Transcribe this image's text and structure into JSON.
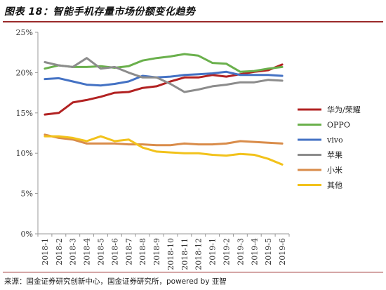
{
  "header": {
    "title": "图表 18：智能手机存量市场份额变化趋势"
  },
  "footer": {
    "source": "来源：国金证券研究创新中心，国金证券研究所，powered by 亚智"
  },
  "chart_data": {
    "type": "line",
    "title": "",
    "xlabel": "",
    "ylabel": "",
    "ylim": [
      0,
      25
    ],
    "yticks": [
      "0%",
      "5%",
      "10%",
      "15%",
      "20%",
      "25%"
    ],
    "grid": false,
    "legend_position": "right",
    "x": [
      "2018-1",
      "2018-2",
      "2018-3",
      "2018-4",
      "2018-5",
      "2018-6",
      "2018-7",
      "2018-8",
      "2018-9",
      "2018-10",
      "2018-11",
      "2018-12",
      "2019-1",
      "2019-2",
      "2019-3",
      "2019-4",
      "2019-5",
      "2019-6"
    ],
    "series": [
      {
        "name": "华为/荣耀",
        "color": "#b22222",
        "values": [
          14.8,
          15.0,
          16.3,
          16.6,
          17.0,
          17.5,
          17.6,
          18.1,
          18.3,
          18.9,
          19.4,
          19.4,
          19.7,
          19.5,
          19.8,
          20.1,
          20.3,
          21.0
        ]
      },
      {
        "name": "OPPO",
        "color": "#6ab04c",
        "values": [
          20.5,
          20.9,
          20.7,
          20.7,
          20.8,
          20.6,
          20.8,
          21.5,
          21.8,
          22.0,
          22.3,
          22.1,
          21.2,
          21.1,
          20.1,
          20.2,
          20.5,
          20.7
        ]
      },
      {
        "name": "vivo",
        "color": "#4472c4",
        "values": [
          19.2,
          19.3,
          18.9,
          18.5,
          18.4,
          18.6,
          18.9,
          19.6,
          19.4,
          19.5,
          19.7,
          19.8,
          19.9,
          20.1,
          19.7,
          19.7,
          19.7,
          19.6
        ]
      },
      {
        "name": "苹果",
        "color": "#8c8c8c",
        "values": [
          21.3,
          20.9,
          20.7,
          21.8,
          20.5,
          20.7,
          20.0,
          19.4,
          19.4,
          18.6,
          17.6,
          17.9,
          18.3,
          18.5,
          18.8,
          18.8,
          19.1,
          19.0
        ]
      },
      {
        "name": "小米",
        "color": "#d98c4a",
        "values": [
          12.3,
          11.9,
          11.7,
          11.2,
          11.2,
          11.2,
          11.1,
          11.1,
          11.0,
          11.0,
          11.2,
          11.1,
          11.1,
          11.2,
          11.5,
          11.4,
          11.3,
          11.2
        ]
      },
      {
        "name": "其他",
        "color": "#f2c21b",
        "values": [
          12.1,
          12.1,
          11.9,
          11.5,
          12.1,
          11.5,
          11.7,
          10.7,
          10.2,
          10.1,
          10.0,
          10.0,
          9.8,
          9.7,
          9.9,
          9.8,
          9.3,
          8.6
        ]
      }
    ]
  }
}
